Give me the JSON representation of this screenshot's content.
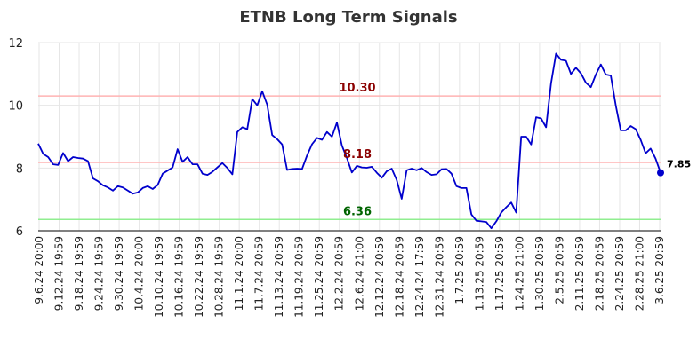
{
  "chart_data": {
    "type": "line",
    "title": "ETNB Long Term Signals",
    "xlabel": "",
    "ylabel": "",
    "ylim": [
      6,
      12
    ],
    "yticks": [
      6,
      8,
      10,
      12
    ],
    "grid": true,
    "x_tick_labels": [
      "9.6.24 20:00",
      "9.12.24 19:59",
      "9.18.24 19:59",
      "9.24.24 19:59",
      "9.30.24 19:59",
      "10.4.24 20:00",
      "10.10.24 19:59",
      "10.16.24 19:59",
      "10.22.24 19:59",
      "10.28.24 19:59",
      "11.1.24 20:00",
      "11.7.24 20:59",
      "11.13.24 20:59",
      "11.19.24 20:59",
      "11.25.24 20:59",
      "12.2.24 20:59",
      "12.6.24 21:00",
      "12.12.24 20:59",
      "12.18.24 20:59",
      "12.24.24 17:59",
      "12.31.24 20:59",
      "1.7.25 20:59",
      "1.13.25 20:59",
      "1.17.25 20:59",
      "1.24.25 21:00",
      "1.30.25 20:59",
      "2.5.25 20:59",
      "2.11.25 20:59",
      "2.18.25 20:59",
      "2.24.25 20:59",
      "2.28.25 21:00",
      "3.6.25 20:59"
    ],
    "series": [
      {
        "values": [
          8.78,
          8.45,
          8.35,
          8.12,
          8.1,
          8.48,
          8.22,
          8.35,
          8.32,
          8.3,
          8.22,
          7.67,
          7.58,
          7.45,
          7.38,
          7.28,
          7.42,
          7.38,
          7.28,
          7.18,
          7.22,
          7.36,
          7.42,
          7.33,
          7.46,
          7.82,
          7.92,
          8.02,
          8.6,
          8.2,
          8.35,
          8.12,
          8.12,
          7.82,
          7.78,
          7.88,
          8.02,
          8.16,
          8.0,
          7.8,
          9.15,
          9.3,
          9.24,
          10.2,
          10.0,
          10.45,
          10.02,
          9.05,
          8.92,
          8.75,
          7.94,
          7.97,
          7.98,
          7.97,
          8.4,
          8.76,
          8.96,
          8.9,
          9.15,
          9.0,
          9.45,
          8.72,
          8.32,
          7.86,
          8.07,
          8.02,
          8.01,
          8.04,
          7.85,
          7.69,
          7.9,
          7.98,
          7.62,
          7.02,
          7.93,
          7.98,
          7.93,
          8.0,
          7.87,
          7.78,
          7.8,
          7.96,
          7.97,
          7.82,
          7.42,
          7.36,
          7.36,
          6.52,
          6.32,
          6.3,
          6.28,
          6.08,
          6.3,
          6.58,
          6.75,
          6.9,
          6.58,
          9.0,
          9.0,
          8.75,
          9.62,
          9.58,
          9.3,
          10.7,
          11.65,
          11.45,
          11.42,
          11.0,
          11.2,
          11.02,
          10.72,
          10.58,
          10.98,
          11.3,
          10.98,
          10.95,
          10.0,
          9.2,
          9.2,
          9.34,
          9.24,
          8.9,
          8.47,
          8.62,
          8.3,
          7.85
        ]
      }
    ],
    "levels": [
      {
        "label": "10.30",
        "value": 10.3,
        "line_color": "#ffb3b3",
        "text_color": "#8b0000"
      },
      {
        "label": "8.18",
        "value": 8.18,
        "line_color": "#ffb3b3",
        "text_color": "#8b0000"
      },
      {
        "label": "6.36",
        "value": 6.36,
        "line_color": "#90ee90",
        "text_color": "#006400"
      }
    ],
    "last_value_label": "7.85",
    "colors": {
      "line": "#0000cc",
      "last_marker": "#0000cc",
      "grid": "#e6e6e6",
      "axis": "#000000"
    }
  }
}
